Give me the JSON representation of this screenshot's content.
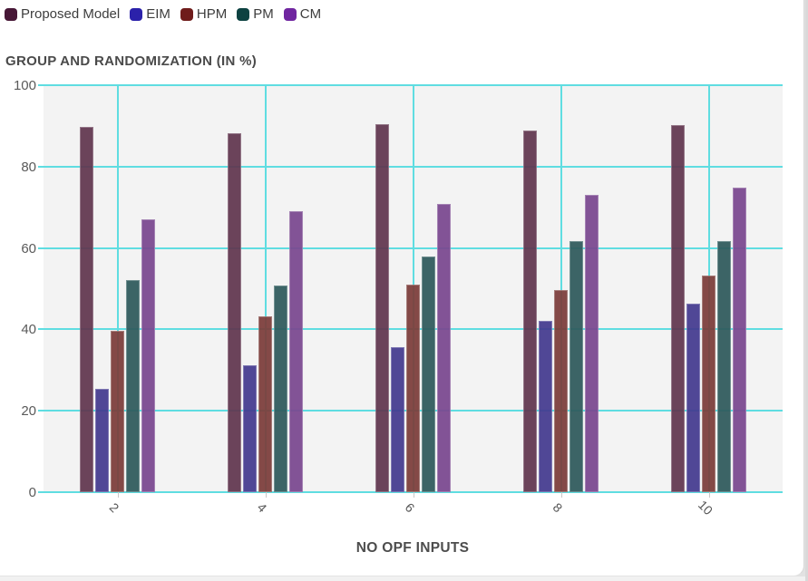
{
  "chart_data": {
    "type": "bar",
    "title": "GROUP AND RANDOMIZATION (IN %)",
    "xlabel": "NO OPF INPUTS",
    "ylabel": "",
    "categories": [
      "2",
      "4",
      "6",
      "8",
      "10"
    ],
    "series": [
      {
        "name": "Proposed Model",
        "color": "#61364f",
        "legend_color": "#471736",
        "values": [
          89.8,
          88.3,
          90.4,
          88.9,
          90.2
        ]
      },
      {
        "name": "EIM",
        "color": "#443a90",
        "legend_color": "#2b21aa",
        "values": [
          25.3,
          31.1,
          35.6,
          42.2,
          46.4
        ]
      },
      {
        "name": "HPM",
        "color": "#7c3d3a",
        "legend_color": "#6f1c1b",
        "values": [
          39.6,
          43.3,
          51.1,
          49.6,
          53.3
        ]
      },
      {
        "name": "PM",
        "color": "#2f5a5c",
        "legend_color": "#0d4241",
        "values": [
          52.2,
          50.7,
          58.0,
          61.8,
          61.6
        ]
      },
      {
        "name": "CM",
        "color": "#7a4790",
        "legend_color": "#7026a0",
        "values": [
          67.1,
          69.1,
          70.9,
          73.1,
          74.9
        ]
      }
    ],
    "ylim": [
      0,
      100
    ],
    "yticks": [
      0,
      20,
      40,
      60,
      80,
      100
    ],
    "grid": true,
    "grid_color": "#5fdde1",
    "plot_bg": "#f3f3f3",
    "legend_position": "top-left",
    "x_tick_rotation_deg": 45
  }
}
